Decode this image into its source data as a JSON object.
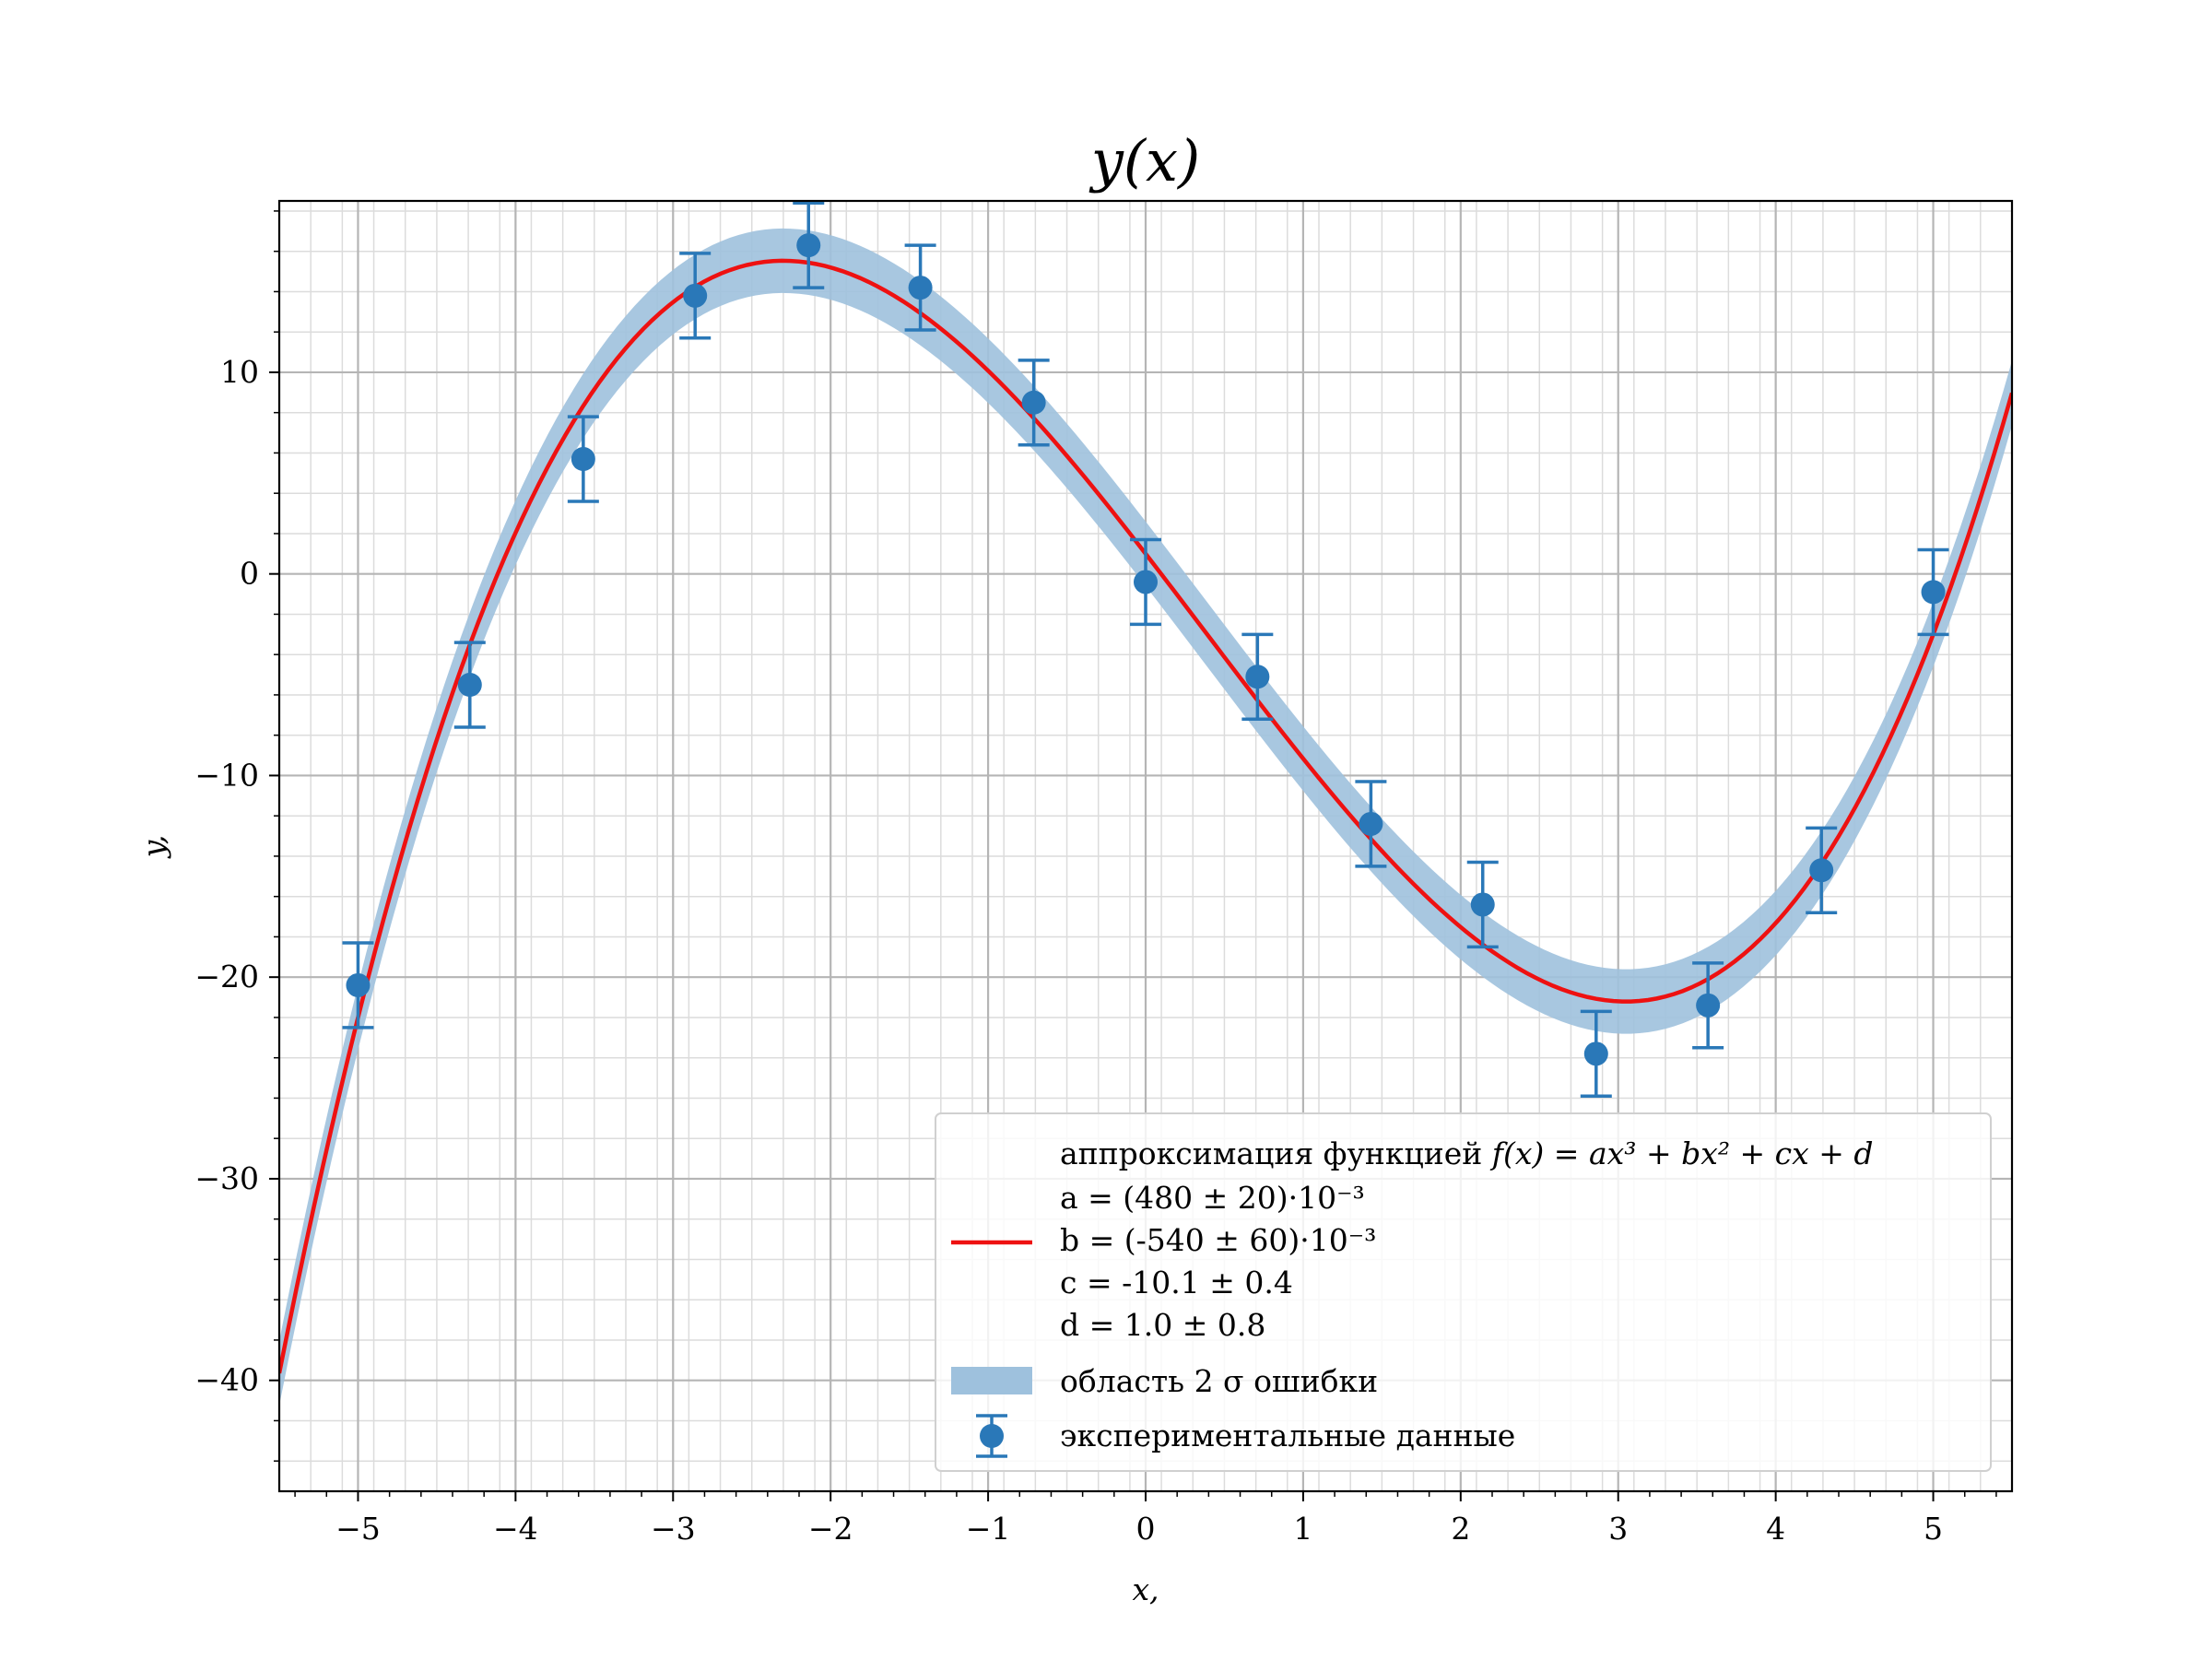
{
  "chart_data": {
    "type": "scatter",
    "title": "y(x)",
    "xlabel": "x,",
    "ylabel": "y,",
    "xlim": [
      -5.5,
      5.5
    ],
    "ylim": [
      -45.5,
      18.5
    ],
    "grid": true,
    "minor_grid": true,
    "xticks": [
      -5,
      -4,
      -3,
      -2,
      -1,
      0,
      1,
      2,
      3,
      4,
      5
    ],
    "yticks": [
      -40,
      -30,
      -20,
      -10,
      0,
      10
    ],
    "tick_labels_x": [
      "−5",
      "−4",
      "−3",
      "−2",
      "−1",
      "0",
      "1",
      "2",
      "3",
      "4",
      "5"
    ],
    "tick_labels_y": [
      "−40",
      "−30",
      "−20",
      "−10",
      "0",
      "10"
    ],
    "legend_position": "lower-right",
    "colors": {
      "fit": "#ee1111",
      "band": "#9ec1dd",
      "points": "#2a78b8"
    },
    "fit": {
      "name": "аппроксимация функцией",
      "formula": "f(x) = ax³ + bx² + cx + d",
      "a": 0.48,
      "b": -0.54,
      "c": -10.1,
      "d": 1.0,
      "band_halfwidth": 1.6,
      "param_lines": [
        "a = (480 ± 20)·10⁻³",
        "b = (-540 ± 60)·10⁻³",
        "c = -10.1 ± 0.4",
        "d = 1.0 ± 0.8"
      ]
    },
    "band": {
      "name": "область 2 σ ошибки"
    },
    "series": [
      {
        "name": "экспериментальные данные",
        "x": [
          -5.0,
          -4.29,
          -3.57,
          -2.86,
          -2.14,
          -1.43,
          -0.71,
          0.0,
          0.71,
          1.43,
          2.14,
          2.86,
          3.57,
          4.29,
          5.0
        ],
        "y": [
          -20.4,
          -5.5,
          5.7,
          13.8,
          16.3,
          14.2,
          8.5,
          -0.4,
          -5.1,
          -12.4,
          -16.4,
          -23.8,
          -21.4,
          -14.7,
          -0.9
        ],
        "yerr": 2.1
      }
    ]
  }
}
